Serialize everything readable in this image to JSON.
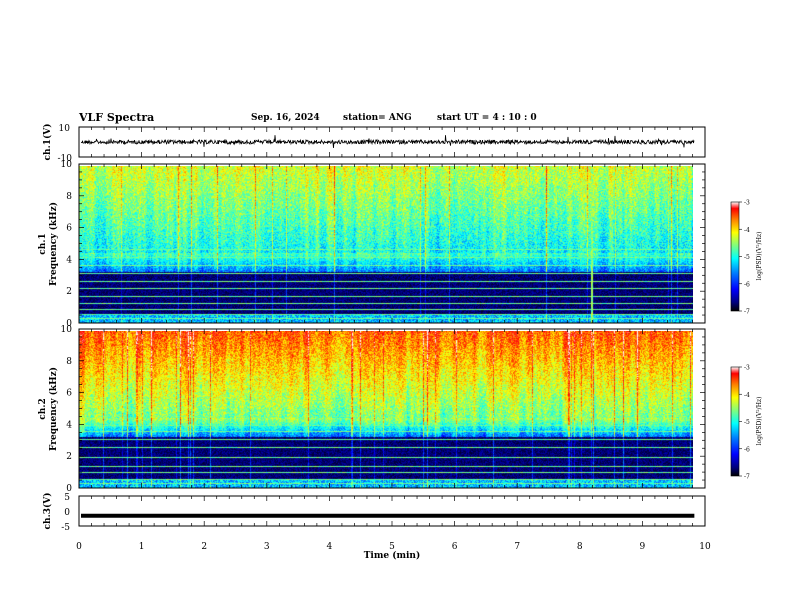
{
  "header": {
    "title": "VLF Spectra",
    "date": "Sep. 16, 2024",
    "station": "station= ANG",
    "start": "start  UT =   4 : 10 : 0"
  },
  "chart_data": [
    {
      "type": "line",
      "panel": "ch1-waveform",
      "ylabel": "ch.1(V)",
      "ylim": [
        -10,
        10
      ],
      "yticks": [
        "10",
        "-10"
      ],
      "xlim": [
        0,
        10
      ],
      "baseline": 0,
      "line_color": "#000000"
    },
    {
      "type": "heatmap",
      "panel": "ch1-spectrogram",
      "ylabel_top": "ch.1",
      "ylabel": "Frequency (kHz)",
      "ylim": [
        0,
        10
      ],
      "yticks": [
        "0",
        "2",
        "4",
        "6",
        "8",
        "10"
      ],
      "xlim": [
        0,
        9.83
      ],
      "colorbar": {
        "label": "log(PSD)(V²/Hz)",
        "range": [
          -7,
          -3
        ],
        "ticks": [
          "-3",
          "-4",
          "-5",
          "-6",
          "-7"
        ]
      },
      "colormap": [
        "#000000",
        "#00007f",
        "#0000ff",
        "#007fff",
        "#00ffff",
        "#7fff7f",
        "#ffff00",
        "#ff7f00",
        "#ff0000",
        "#ffffff"
      ],
      "interference_lines_khz": [
        0.3,
        0.6,
        0.9,
        1.25,
        1.7,
        2.2,
        2.7,
        3.2,
        3.7,
        4.2,
        4.7
      ],
      "bright_spike_min": [
        8.2
      ]
    },
    {
      "type": "heatmap",
      "panel": "ch2-spectrogram",
      "ylabel_top": "ch.2",
      "ylabel": "Frequency (kHz)",
      "ylim": [
        0,
        10
      ],
      "yticks": [
        "0",
        "2",
        "4",
        "6",
        "8",
        "10"
      ],
      "xlim": [
        0,
        9.83
      ],
      "colorbar": {
        "label": "log(PSD)(V²/Hz)",
        "range": [
          -7,
          -3
        ],
        "ticks": [
          "-3",
          "-4",
          "-5",
          "-6",
          "-7"
        ]
      },
      "colormap": [
        "#000000",
        "#00007f",
        "#0000ff",
        "#007fff",
        "#00ffff",
        "#7fff7f",
        "#ffff00",
        "#ff7f00",
        "#ff0000",
        "#ffffff"
      ],
      "interference_lines_khz": [
        0.3,
        0.6,
        1.0,
        1.4,
        2.0,
        2.6,
        3.1,
        3.6,
        4.0
      ]
    },
    {
      "type": "line",
      "panel": "ch3-waveform",
      "ylabel": "ch.3(V)",
      "ylim": [
        -5,
        5
      ],
      "yticks": [
        "5",
        "0",
        "-5"
      ],
      "xlim": [
        0,
        10
      ],
      "level": -1.6,
      "xlabel": "Time (min)",
      "xticks": [
        "0",
        "1",
        "2",
        "3",
        "4",
        "5",
        "6",
        "7",
        "8",
        "9",
        "10"
      ]
    }
  ]
}
